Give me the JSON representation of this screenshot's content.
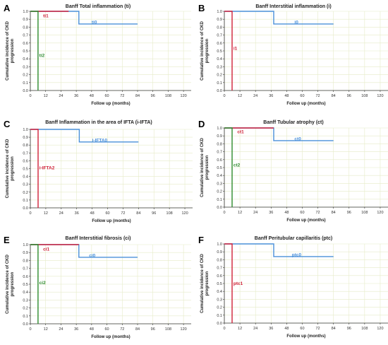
{
  "figure": {
    "colors": {
      "ti0": "#4a90d9",
      "ti1": "#d0213a",
      "ti2": "#2e8b2e",
      "axis": "#333333",
      "grid": "#e6ebc8"
    }
  },
  "chart_data": [
    {
      "panel": "A",
      "type": "line",
      "title": "Banff Total inflammation (ti)",
      "xlabel": "Follow up (months)",
      "ylabel": "Cumulative incidence of CKD progression",
      "xlim": [
        0,
        126
      ],
      "ylim": [
        0,
        1.0
      ],
      "xticks": [
        0,
        12,
        24,
        36,
        48,
        60,
        72,
        84,
        96,
        108,
        120
      ],
      "yticks": [
        0.0,
        0.1,
        0.2,
        0.3,
        0.4,
        0.5,
        0.6,
        0.7,
        0.8,
        0.9,
        1.0
      ],
      "grid": true,
      "series": [
        {
          "name": "ti0",
          "color": "#4a90d9",
          "points": [
            [
              0,
              1.0
            ],
            [
              38,
              1.0
            ],
            [
              38,
              0.84
            ],
            [
              84,
              0.84
            ]
          ],
          "label_at": [
            48,
            0.86
          ]
        },
        {
          "name": "ti1",
          "color": "#d0213a",
          "points": [
            [
              0,
              1.0
            ],
            [
              30,
              1.0
            ]
          ],
          "label_at": [
            10,
            0.94
          ]
        },
        {
          "name": "ti2",
          "color": "#2e8b2e",
          "points": [
            [
              0,
              1.0
            ],
            [
              6,
              1.0
            ],
            [
              6,
              0.0
            ]
          ],
          "label_at": [
            7,
            0.44
          ]
        }
      ]
    },
    {
      "panel": "B",
      "type": "line",
      "title": "Banff Interstitial inflammation (i)",
      "xlabel": "Follow up (months)",
      "ylabel": "Cumulative incidence of CKD progression",
      "xlim": [
        0,
        126
      ],
      "ylim": [
        0,
        1.0
      ],
      "xticks": [
        0,
        12,
        24,
        36,
        48,
        60,
        72,
        84,
        96,
        108,
        120
      ],
      "yticks": [
        0.0,
        0.1,
        0.2,
        0.3,
        0.4,
        0.5,
        0.6,
        0.7,
        0.8,
        0.9,
        1.0
      ],
      "grid": true,
      "series": [
        {
          "name": "i0",
          "color": "#4a90d9",
          "points": [
            [
              0,
              1.0
            ],
            [
              38,
              1.0
            ],
            [
              38,
              0.84
            ],
            [
              84,
              0.84
            ]
          ],
          "label_at": [
            54,
            0.86
          ]
        },
        {
          "name": "i1",
          "color": "#d0213a",
          "points": [
            [
              0,
              1.0
            ],
            [
              6,
              1.0
            ],
            [
              6,
              0.0
            ]
          ],
          "label_at": [
            7,
            0.53
          ]
        }
      ]
    },
    {
      "panel": "C",
      "type": "line",
      "title": "Banff Inflammation in the area of IFTA (i-IFTA)",
      "xlabel": "Follow up (months)",
      "ylabel": "Cumulative incidence of CKD progression",
      "xlim": [
        0,
        126
      ],
      "ylim": [
        0,
        1.0
      ],
      "xticks": [
        0,
        12,
        24,
        36,
        48,
        60,
        72,
        84,
        96,
        108,
        120
      ],
      "yticks": [
        0.0,
        0.1,
        0.2,
        0.3,
        0.4,
        0.5,
        0.6,
        0.7,
        0.8,
        0.9,
        1.0
      ],
      "grid": true,
      "series": [
        {
          "name": "i-IFTA0",
          "color": "#4a90d9",
          "points": [
            [
              0,
              1.0
            ],
            [
              38,
              1.0
            ],
            [
              38,
              0.84
            ],
            [
              84,
              0.84
            ]
          ],
          "label_at": [
            48,
            0.86
          ]
        },
        {
          "name": "i-IFTA2",
          "color": "#d0213a",
          "points": [
            [
              0,
              1.0
            ],
            [
              6,
              1.0
            ],
            [
              6,
              0.0
            ]
          ],
          "label_at": [
            7,
            0.51
          ]
        }
      ]
    },
    {
      "panel": "D",
      "type": "line",
      "title": "Banff Tubular atrophy (ct)",
      "xlabel": "Follow up (months)",
      "ylabel": "Cumulative incidence of CKD progression",
      "xlim": [
        0,
        126
      ],
      "ylim": [
        0,
        1.0
      ],
      "xticks": [
        0,
        12,
        24,
        36,
        48,
        60,
        72,
        84,
        96,
        108,
        120
      ],
      "yticks": [
        0.0,
        0.1,
        0.2,
        0.3,
        0.4,
        0.5,
        0.6,
        0.7,
        0.8,
        0.9,
        1.0
      ],
      "grid": true,
      "series": [
        {
          "name": "ct0",
          "color": "#4a90d9",
          "points": [
            [
              0,
              1.0
            ],
            [
              38,
              1.0
            ],
            [
              38,
              0.84
            ],
            [
              84,
              0.84
            ]
          ],
          "label_at": [
            54,
            0.86
          ]
        },
        {
          "name": "ct1",
          "color": "#d0213a",
          "points": [
            [
              0,
              1.0
            ],
            [
              38,
              1.0
            ]
          ],
          "label_at": [
            10,
            0.95
          ]
        },
        {
          "name": "ct2",
          "color": "#2e8b2e",
          "points": [
            [
              0,
              1.0
            ],
            [
              6,
              1.0
            ],
            [
              6,
              0.0
            ]
          ],
          "label_at": [
            7,
            0.53
          ]
        }
      ]
    },
    {
      "panel": "E",
      "type": "line",
      "title": "Banff Interstitial fibrosis (ci)",
      "xlabel": "Follow up (months)",
      "ylabel": "Cumulative incidence of CKD progression",
      "xlim": [
        0,
        126
      ],
      "ylim": [
        0,
        1.0
      ],
      "xticks": [
        0,
        12,
        24,
        36,
        48,
        60,
        72,
        84,
        96,
        108,
        120
      ],
      "yticks": [
        0.0,
        0.1,
        0.2,
        0.3,
        0.4,
        0.5,
        0.6,
        0.7,
        0.8,
        0.9,
        1.0
      ],
      "grid": true,
      "series": [
        {
          "name": "ci0",
          "color": "#4a90d9",
          "points": [
            [
              0,
              1.0
            ],
            [
              38,
              1.0
            ],
            [
              38,
              0.84
            ],
            [
              84,
              0.84
            ]
          ],
          "label_at": [
            46,
            0.86
          ]
        },
        {
          "name": "ci1",
          "color": "#d0213a",
          "points": [
            [
              0,
              1.0
            ],
            [
              38,
              1.0
            ]
          ],
          "label_at": [
            10,
            0.94
          ]
        },
        {
          "name": "ci2",
          "color": "#2e8b2e",
          "points": [
            [
              0,
              1.0
            ],
            [
              6,
              1.0
            ],
            [
              6,
              0.0
            ]
          ],
          "label_at": [
            7,
            0.52
          ]
        }
      ]
    },
    {
      "panel": "F",
      "type": "line",
      "title": "Banff Peritubular capillaritis (ptc)",
      "xlabel": "Follow up (months)",
      "ylabel": "Cumulative incidence of CKD progression",
      "xlim": [
        0,
        126
      ],
      "ylim": [
        0,
        1.0
      ],
      "xticks": [
        0,
        12,
        24,
        36,
        48,
        60,
        72,
        84,
        96,
        108,
        120
      ],
      "yticks": [
        0.0,
        0.1,
        0.2,
        0.3,
        0.4,
        0.5,
        0.6,
        0.7,
        0.8,
        0.9,
        1.0
      ],
      "grid": true,
      "series": [
        {
          "name": "ptc0",
          "color": "#4a90d9",
          "points": [
            [
              0,
              1.0
            ],
            [
              38,
              1.0
            ],
            [
              38,
              0.84
            ],
            [
              84,
              0.84
            ]
          ],
          "label_at": [
            52,
            0.86
          ]
        },
        {
          "name": "ptc1",
          "color": "#d0213a",
          "points": [
            [
              0,
              1.0
            ],
            [
              6,
              1.0
            ],
            [
              6,
              0.0
            ]
          ],
          "label_at": [
            7,
            0.5
          ]
        }
      ]
    }
  ]
}
